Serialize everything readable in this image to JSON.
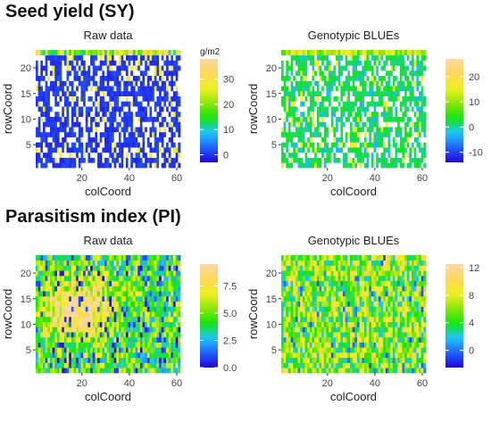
{
  "sections": [
    {
      "title": "Seed yield (SY)"
    },
    {
      "title": "Parasitism index (PI)"
    }
  ],
  "colors": {
    "scale": [
      "#2400d8",
      "#1f63ff",
      "#1fc6ff",
      "#12e60a",
      "#8ce60a",
      "#f0f021",
      "#ffd75a",
      "#fbd8a8"
    ],
    "missing": "#ffffff"
  },
  "chart_data": [
    {
      "type": "heatmap",
      "title": "Raw data",
      "xlabel": "colCoord",
      "ylabel": "rowCoord",
      "legend_title": "g/m2",
      "x_ticks": [
        20,
        40,
        60
      ],
      "y_ticks": [
        5,
        10,
        15,
        20
      ],
      "xlim": [
        1,
        61
      ],
      "ylim": [
        1,
        23
      ],
      "color_range": [
        -3,
        38
      ],
      "colorbar_ticks": [
        0,
        10,
        20,
        30
      ],
      "rows": 23,
      "cols": 61,
      "description": "Mostly low values (near 0) with many missing plots (white); higher values sparse and concentrated in the top row.",
      "missing_fraction": 0.32,
      "pattern": "raw_sy"
    },
    {
      "type": "heatmap",
      "title": "Genotypic BLUEs",
      "xlabel": "colCoord",
      "ylabel": "rowCoord",
      "legend_title": "",
      "x_ticks": [
        20,
        40,
        60
      ],
      "y_ticks": [
        5,
        10,
        15,
        20
      ],
      "xlim": [
        1,
        61
      ],
      "ylim": [
        1,
        23
      ],
      "color_range": [
        -14,
        27
      ],
      "colorbar_ticks": [
        -10,
        0,
        10,
        20
      ],
      "rows": 23,
      "cols": 61,
      "missing_fraction": 0.32,
      "pattern": "blue_sy"
    },
    {
      "type": "heatmap",
      "title": "Raw data",
      "xlabel": "colCoord",
      "ylabel": "rowCoord",
      "legend_title": "",
      "x_ticks": [
        20,
        40,
        60
      ],
      "y_ticks": [
        5,
        10,
        15,
        20
      ],
      "xlim": [
        1,
        61
      ],
      "ylim": [
        1,
        23
      ],
      "color_range": [
        0,
        9.5
      ],
      "colorbar_ticks": [
        0.0,
        2.5,
        5.0,
        7.5
      ],
      "rows": 23,
      "cols": 61,
      "missing_fraction": 0,
      "pattern": "raw_pi"
    },
    {
      "type": "heatmap",
      "title": "Genotypic BLUEs",
      "xlabel": "colCoord",
      "ylabel": "rowCoord",
      "legend_title": "",
      "x_ticks": [
        20,
        40,
        60
      ],
      "y_ticks": [
        5,
        10,
        15,
        20
      ],
      "xlim": [
        1,
        61
      ],
      "ylim": [
        1,
        23
      ],
      "color_range": [
        -2.5,
        12.5
      ],
      "colorbar_ticks": [
        0,
        4,
        8,
        12
      ],
      "rows": 23,
      "cols": 61,
      "missing_fraction": 0,
      "pattern": "blue_pi"
    }
  ]
}
